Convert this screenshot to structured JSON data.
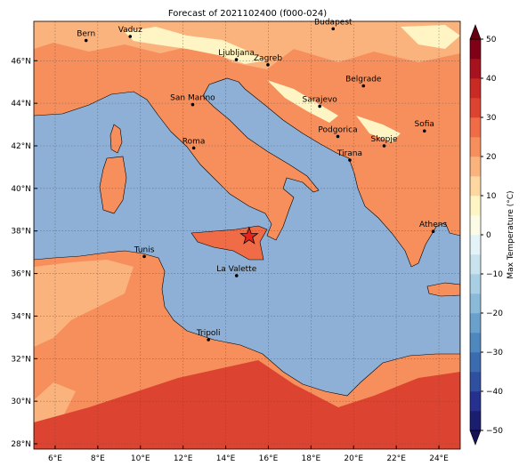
{
  "map": {
    "title": "Forecast of 2021102400 (f000-024)",
    "lonlim": [
      5,
      25
    ],
    "latlim": [
      27.75,
      47.85
    ],
    "lonticks": [
      {
        "value": 6,
        "label": "6°E"
      },
      {
        "value": 8,
        "label": "8°E"
      },
      {
        "value": 10,
        "label": "10°E"
      },
      {
        "value": 12,
        "label": "12°E"
      },
      {
        "value": 14,
        "label": "14°E"
      },
      {
        "value": 16,
        "label": "16°E"
      },
      {
        "value": 18,
        "label": "18°E"
      },
      {
        "value": 20,
        "label": "20°E"
      },
      {
        "value": 22,
        "label": "22°E"
      },
      {
        "value": 24,
        "label": "24°E"
      }
    ],
    "latticks": [
      {
        "value": 28,
        "label": "28°N"
      },
      {
        "value": 30,
        "label": "30°N"
      },
      {
        "value": 32,
        "label": "32°N"
      },
      {
        "value": 34,
        "label": "34°N"
      },
      {
        "value": 36,
        "label": "36°N"
      },
      {
        "value": 38,
        "label": "38°N"
      },
      {
        "value": 40,
        "label": "40°N"
      },
      {
        "value": 42,
        "label": "42°N"
      },
      {
        "value": 44,
        "label": "44°N"
      },
      {
        "value": 46,
        "label": "46°N"
      }
    ],
    "grid": true,
    "cities": [
      {
        "name": "Bern",
        "lon": 7.45,
        "lat": 46.95
      },
      {
        "name": "Vaduz",
        "lon": 9.52,
        "lat": 47.14
      },
      {
        "name": "Budapest",
        "lon": 19.04,
        "lat": 47.5
      },
      {
        "name": "Ljubljana",
        "lon": 14.5,
        "lat": 46.05
      },
      {
        "name": "Zagreb",
        "lon": 15.98,
        "lat": 45.81
      },
      {
        "name": "Belgrade",
        "lon": 20.46,
        "lat": 44.82
      },
      {
        "name": "San Marino",
        "lon": 12.45,
        "lat": 43.94
      },
      {
        "name": "Sarajevo",
        "lon": 18.41,
        "lat": 43.86
      },
      {
        "name": "Sofia",
        "lon": 23.32,
        "lat": 42.7
      },
      {
        "name": "Roma",
        "lon": 12.5,
        "lat": 41.9
      },
      {
        "name": "Podgorica",
        "lon": 19.26,
        "lat": 42.44
      },
      {
        "name": "Skopje",
        "lon": 21.43,
        "lat": 42.0
      },
      {
        "name": "Tirana",
        "lon": 19.82,
        "lat": 41.33
      },
      {
        "name": "Athens",
        "lon": 23.73,
        "lat": 37.98
      },
      {
        "name": "Tunis",
        "lon": 10.18,
        "lat": 36.8
      },
      {
        "name": "La Valette",
        "lon": 14.51,
        "lat": 35.9
      },
      {
        "name": "Tripoli",
        "lon": 13.19,
        "lat": 32.89
      }
    ],
    "marker": {
      "lon": 15.1,
      "lat": 37.75,
      "color": "#e8221c"
    },
    "colorbar": {
      "label": "Max Temperature (°C)",
      "lim": [
        -50,
        50
      ],
      "ticks": [
        {
          "value": -50,
          "label": "−50"
        },
        {
          "value": -40,
          "label": "−40"
        },
        {
          "value": -30,
          "label": "−30"
        },
        {
          "value": -20,
          "label": "−20"
        },
        {
          "value": -10,
          "label": "−10"
        },
        0,
        10,
        20,
        30,
        40,
        50
      ],
      "colors": [
        "#1b1d6e",
        "#26308f",
        "#2f4fa0",
        "#3b6cb0",
        "#4f88bf",
        "#69a1cc",
        "#8bbad9",
        "#a9cfe4",
        "#c8e3ee",
        "#e4f3f7",
        "#fbfbe6",
        "#fef4c4",
        "#fdd7a0",
        "#fbb37e",
        "#f68f5c",
        "#ef6c47",
        "#dc4330",
        "#c92a24",
        "#a7121f",
        "#800018"
      ],
      "under": "#16125a",
      "over": "#650012"
    }
  }
}
